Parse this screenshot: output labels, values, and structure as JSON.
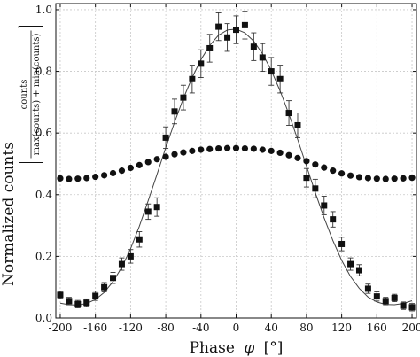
{
  "chart_data": {
    "type": "scatter",
    "xlabel_main": "Phase",
    "xlabel_symbol": "φ",
    "xlabel_unit": "[°]",
    "ylabel_main": "Normalized counts",
    "ylabel_fraction_numerator": "counts",
    "ylabel_fraction_denominator": "max(counts) + min(counts)",
    "xlim": [
      -205,
      205
    ],
    "ylim": [
      0,
      1.02
    ],
    "x_ticks": [
      -200,
      -160,
      -120,
      -80,
      -40,
      0,
      40,
      80,
      120,
      160,
      200
    ],
    "x_tick_labels": [
      "-200",
      "-160",
      "-120",
      "-80",
      "-40",
      "0",
      "40",
      "80",
      "120",
      "160",
      "200"
    ],
    "y_ticks": [
      0.0,
      0.2,
      0.4,
      0.6,
      0.8,
      1.0
    ],
    "y_tick_labels": [
      "0.0",
      "0.2",
      "0.4",
      "0.6",
      "0.8",
      "1.0"
    ],
    "grid": true,
    "series": [
      {
        "marker": "square",
        "color": "#111111",
        "points": [
          {
            "x": -200,
            "y": 0.075,
            "err": 0.012
          },
          {
            "x": -190,
            "y": 0.055,
            "err": 0.012
          },
          {
            "x": -180,
            "y": 0.045,
            "err": 0.012
          },
          {
            "x": -170,
            "y": 0.05,
            "err": 0.012
          },
          {
            "x": -160,
            "y": 0.072,
            "err": 0.015
          },
          {
            "x": -150,
            "y": 0.1,
            "err": 0.015
          },
          {
            "x": -140,
            "y": 0.13,
            "err": 0.018
          },
          {
            "x": -130,
            "y": 0.175,
            "err": 0.02
          },
          {
            "x": -120,
            "y": 0.2,
            "err": 0.022
          },
          {
            "x": -110,
            "y": 0.255,
            "err": 0.025
          },
          {
            "x": -100,
            "y": 0.345,
            "err": 0.025
          },
          {
            "x": -90,
            "y": 0.36,
            "err": 0.03
          },
          {
            "x": -80,
            "y": 0.585,
            "err": 0.035
          },
          {
            "x": -70,
            "y": 0.67,
            "err": 0.04
          },
          {
            "x": -60,
            "y": 0.715,
            "err": 0.04
          },
          {
            "x": -50,
            "y": 0.775,
            "err": 0.045
          },
          {
            "x": -40,
            "y": 0.825,
            "err": 0.045
          },
          {
            "x": -30,
            "y": 0.875,
            "err": 0.045
          },
          {
            "x": -20,
            "y": 0.945,
            "err": 0.045
          },
          {
            "x": -10,
            "y": 0.91,
            "err": 0.045
          },
          {
            "x": 0,
            "y": 0.935,
            "err": 0.045
          },
          {
            "x": 10,
            "y": 0.95,
            "err": 0.045
          },
          {
            "x": 20,
            "y": 0.88,
            "err": 0.045
          },
          {
            "x": 30,
            "y": 0.845,
            "err": 0.045
          },
          {
            "x": 40,
            "y": 0.8,
            "err": 0.045
          },
          {
            "x": 50,
            "y": 0.775,
            "err": 0.045
          },
          {
            "x": 60,
            "y": 0.665,
            "err": 0.04
          },
          {
            "x": 70,
            "y": 0.625,
            "err": 0.04
          },
          {
            "x": 80,
            "y": 0.455,
            "err": 0.03
          },
          {
            "x": 90,
            "y": 0.42,
            "err": 0.03
          },
          {
            "x": 100,
            "y": 0.365,
            "err": 0.03
          },
          {
            "x": 110,
            "y": 0.32,
            "err": 0.025
          },
          {
            "x": 120,
            "y": 0.24,
            "err": 0.022
          },
          {
            "x": 130,
            "y": 0.175,
            "err": 0.02
          },
          {
            "x": 140,
            "y": 0.155,
            "err": 0.018
          },
          {
            "x": 150,
            "y": 0.095,
            "err": 0.015
          },
          {
            "x": 160,
            "y": 0.07,
            "err": 0.015
          },
          {
            "x": 170,
            "y": 0.055,
            "err": 0.012
          },
          {
            "x": 180,
            "y": 0.065,
            "err": 0.012
          },
          {
            "x": 190,
            "y": 0.04,
            "err": 0.012
          },
          {
            "x": 200,
            "y": 0.035,
            "err": 0.012
          }
        ]
      },
      {
        "marker": "circle",
        "color": "#111111",
        "points": [
          {
            "x": -200,
            "y": 0.453
          },
          {
            "x": -190,
            "y": 0.451
          },
          {
            "x": -180,
            "y": 0.452
          },
          {
            "x": -170,
            "y": 0.454
          },
          {
            "x": -160,
            "y": 0.458
          },
          {
            "x": -150,
            "y": 0.463
          },
          {
            "x": -140,
            "y": 0.47
          },
          {
            "x": -130,
            "y": 0.478
          },
          {
            "x": -120,
            "y": 0.487
          },
          {
            "x": -110,
            "y": 0.496
          },
          {
            "x": -100,
            "y": 0.506
          },
          {
            "x": -90,
            "y": 0.515
          },
          {
            "x": -80,
            "y": 0.523
          },
          {
            "x": -70,
            "y": 0.531
          },
          {
            "x": -60,
            "y": 0.537
          },
          {
            "x": -50,
            "y": 0.542
          },
          {
            "x": -40,
            "y": 0.546
          },
          {
            "x": -30,
            "y": 0.548
          },
          {
            "x": -20,
            "y": 0.55
          },
          {
            "x": -10,
            "y": 0.551
          },
          {
            "x": 0,
            "y": 0.551
          },
          {
            "x": 10,
            "y": 0.55
          },
          {
            "x": 20,
            "y": 0.549
          },
          {
            "x": 30,
            "y": 0.546
          },
          {
            "x": 40,
            "y": 0.542
          },
          {
            "x": 50,
            "y": 0.536
          },
          {
            "x": 60,
            "y": 0.528
          },
          {
            "x": 70,
            "y": 0.519
          },
          {
            "x": 80,
            "y": 0.509
          },
          {
            "x": 90,
            "y": 0.498
          },
          {
            "x": 100,
            "y": 0.488
          },
          {
            "x": 110,
            "y": 0.478
          },
          {
            "x": 120,
            "y": 0.469
          },
          {
            "x": 130,
            "y": 0.462
          },
          {
            "x": 140,
            "y": 0.457
          },
          {
            "x": 150,
            "y": 0.454
          },
          {
            "x": 160,
            "y": 0.452
          },
          {
            "x": 170,
            "y": 0.451
          },
          {
            "x": 180,
            "y": 0.452
          },
          {
            "x": 190,
            "y": 0.453
          },
          {
            "x": 200,
            "y": 0.455
          }
        ]
      }
    ],
    "fit_curve": {
      "style": "solid thin line",
      "color": "#444444",
      "points": [
        {
          "x": -200,
          "y": 0.048
        },
        {
          "x": -190,
          "y": 0.043
        },
        {
          "x": -180,
          "y": 0.042
        },
        {
          "x": -170,
          "y": 0.047
        },
        {
          "x": -160,
          "y": 0.06
        },
        {
          "x": -150,
          "y": 0.083
        },
        {
          "x": -140,
          "y": 0.118
        },
        {
          "x": -130,
          "y": 0.165
        },
        {
          "x": -120,
          "y": 0.225
        },
        {
          "x": -110,
          "y": 0.298
        },
        {
          "x": -100,
          "y": 0.38
        },
        {
          "x": -90,
          "y": 0.466
        },
        {
          "x": -80,
          "y": 0.553
        },
        {
          "x": -70,
          "y": 0.635
        },
        {
          "x": -60,
          "y": 0.712
        },
        {
          "x": -50,
          "y": 0.78
        },
        {
          "x": -40,
          "y": 0.838
        },
        {
          "x": -30,
          "y": 0.884
        },
        {
          "x": -20,
          "y": 0.917
        },
        {
          "x": -10,
          "y": 0.934
        },
        {
          "x": 0,
          "y": 0.937
        },
        {
          "x": 10,
          "y": 0.925
        },
        {
          "x": 20,
          "y": 0.898
        },
        {
          "x": 30,
          "y": 0.857
        },
        {
          "x": 40,
          "y": 0.803
        },
        {
          "x": 50,
          "y": 0.737
        },
        {
          "x": 60,
          "y": 0.661
        },
        {
          "x": 70,
          "y": 0.579
        },
        {
          "x": 80,
          "y": 0.493
        },
        {
          "x": 90,
          "y": 0.407
        },
        {
          "x": 100,
          "y": 0.325
        },
        {
          "x": 110,
          "y": 0.251
        },
        {
          "x": 120,
          "y": 0.187
        },
        {
          "x": 130,
          "y": 0.135
        },
        {
          "x": 140,
          "y": 0.096
        },
        {
          "x": 150,
          "y": 0.068
        },
        {
          "x": 160,
          "y": 0.052
        },
        {
          "x": 170,
          "y": 0.044
        },
        {
          "x": 180,
          "y": 0.043
        },
        {
          "x": 190,
          "y": 0.047
        },
        {
          "x": 200,
          "y": 0.056
        }
      ]
    }
  }
}
